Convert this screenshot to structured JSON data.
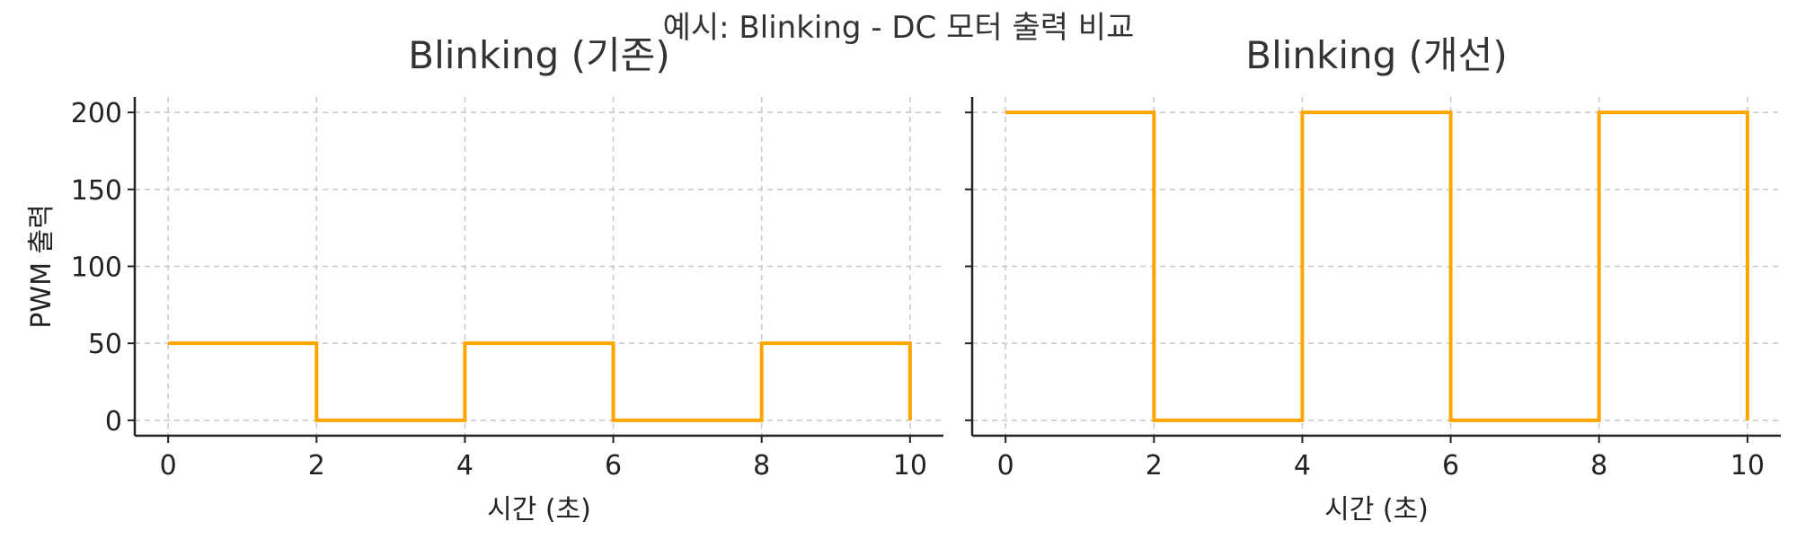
{
  "figure": {
    "suptitle": "예시: Blinking - DC 모터 출력 비교"
  },
  "chart_data": [
    {
      "type": "line",
      "title": "Blinking (기존)",
      "xlabel": "시간 (초)",
      "ylabel": "PWM 출력",
      "xlim": [
        -0.45,
        10.45
      ],
      "ylim": [
        -10,
        210
      ],
      "xticks": [
        0,
        2,
        4,
        6,
        8,
        10
      ],
      "yticks": [
        0,
        50,
        100,
        150,
        200
      ],
      "grid": true,
      "color": "#ffa500",
      "series": [
        {
          "x": [
            0,
            2,
            2,
            4,
            4,
            6,
            6,
            8,
            8,
            10,
            10
          ],
          "y": [
            50,
            50,
            0,
            0,
            50,
            50,
            0,
            0,
            50,
            50,
            0
          ]
        }
      ]
    },
    {
      "type": "line",
      "title": "Blinking (개선)",
      "xlabel": "시간 (초)",
      "ylabel": "",
      "xlim": [
        -0.45,
        10.45
      ],
      "ylim": [
        -10,
        210
      ],
      "xticks": [
        0,
        2,
        4,
        6,
        8,
        10
      ],
      "yticks": [
        0,
        50,
        100,
        150,
        200
      ],
      "show_ytick_labels": false,
      "grid": true,
      "color": "#ffa500",
      "series": [
        {
          "x": [
            0,
            2,
            2,
            4,
            4,
            6,
            6,
            8,
            8,
            10,
            10
          ],
          "y": [
            200,
            200,
            0,
            0,
            200,
            200,
            0,
            0,
            200,
            200,
            0
          ]
        }
      ]
    }
  ]
}
